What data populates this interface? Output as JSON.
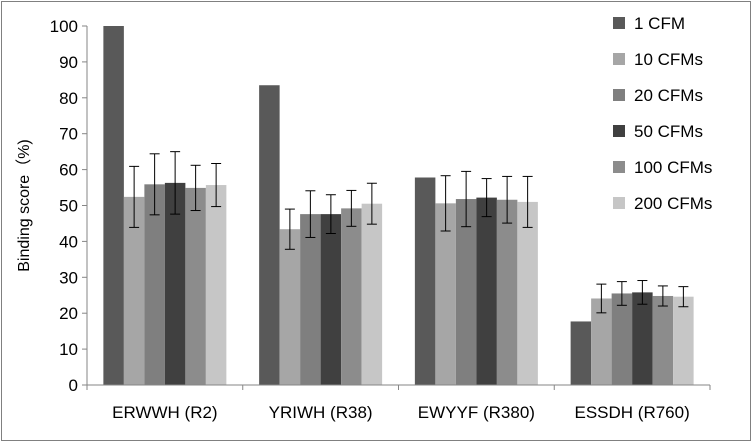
{
  "chart_data": {
    "type": "bar",
    "title": "",
    "xlabel": "",
    "ylabel": "Binding score（%)",
    "ylim": [
      0,
      100
    ],
    "yticks": [
      0,
      10,
      20,
      30,
      40,
      50,
      60,
      70,
      80,
      90,
      100
    ],
    "grid": false,
    "legend_position": "right",
    "categories": [
      "ERWWH (R2)",
      "YRIWH (R38)",
      "EWYYF (R380)",
      "ESSDH (R760)"
    ],
    "series": [
      {
        "name": "1 CFM",
        "color": "#595959",
        "values": [
          100,
          83.5,
          57.8,
          17.7
        ],
        "errors": [
          null,
          null,
          null,
          null
        ]
      },
      {
        "name": "10 CFMs",
        "color": "#a6a6a6",
        "values": [
          52.4,
          43.4,
          50.6,
          24.1
        ],
        "errors": [
          8.5,
          5.6,
          7.7,
          4.0
        ]
      },
      {
        "name": "20 CFMs",
        "color": "#7f7f7f",
        "values": [
          55.9,
          47.6,
          51.8,
          25.5
        ],
        "errors": [
          8.5,
          6.5,
          7.7,
          3.3
        ]
      },
      {
        "name": "50 CFMs",
        "color": "#404040",
        "values": [
          56.3,
          47.6,
          52.2,
          25.8
        ],
        "errors": [
          8.7,
          5.4,
          5.3,
          3.3
        ]
      },
      {
        "name": "100 CFMs",
        "color": "#8c8c8c",
        "values": [
          54.9,
          49.2,
          51.6,
          24.8
        ],
        "errors": [
          6.3,
          5.0,
          6.5,
          2.8
        ]
      },
      {
        "name": "200 CFMs",
        "color": "#c6c6c6",
        "values": [
          55.7,
          50.5,
          51.0,
          24.6
        ],
        "errors": [
          6.0,
          5.7,
          7.1,
          2.8
        ]
      }
    ]
  }
}
